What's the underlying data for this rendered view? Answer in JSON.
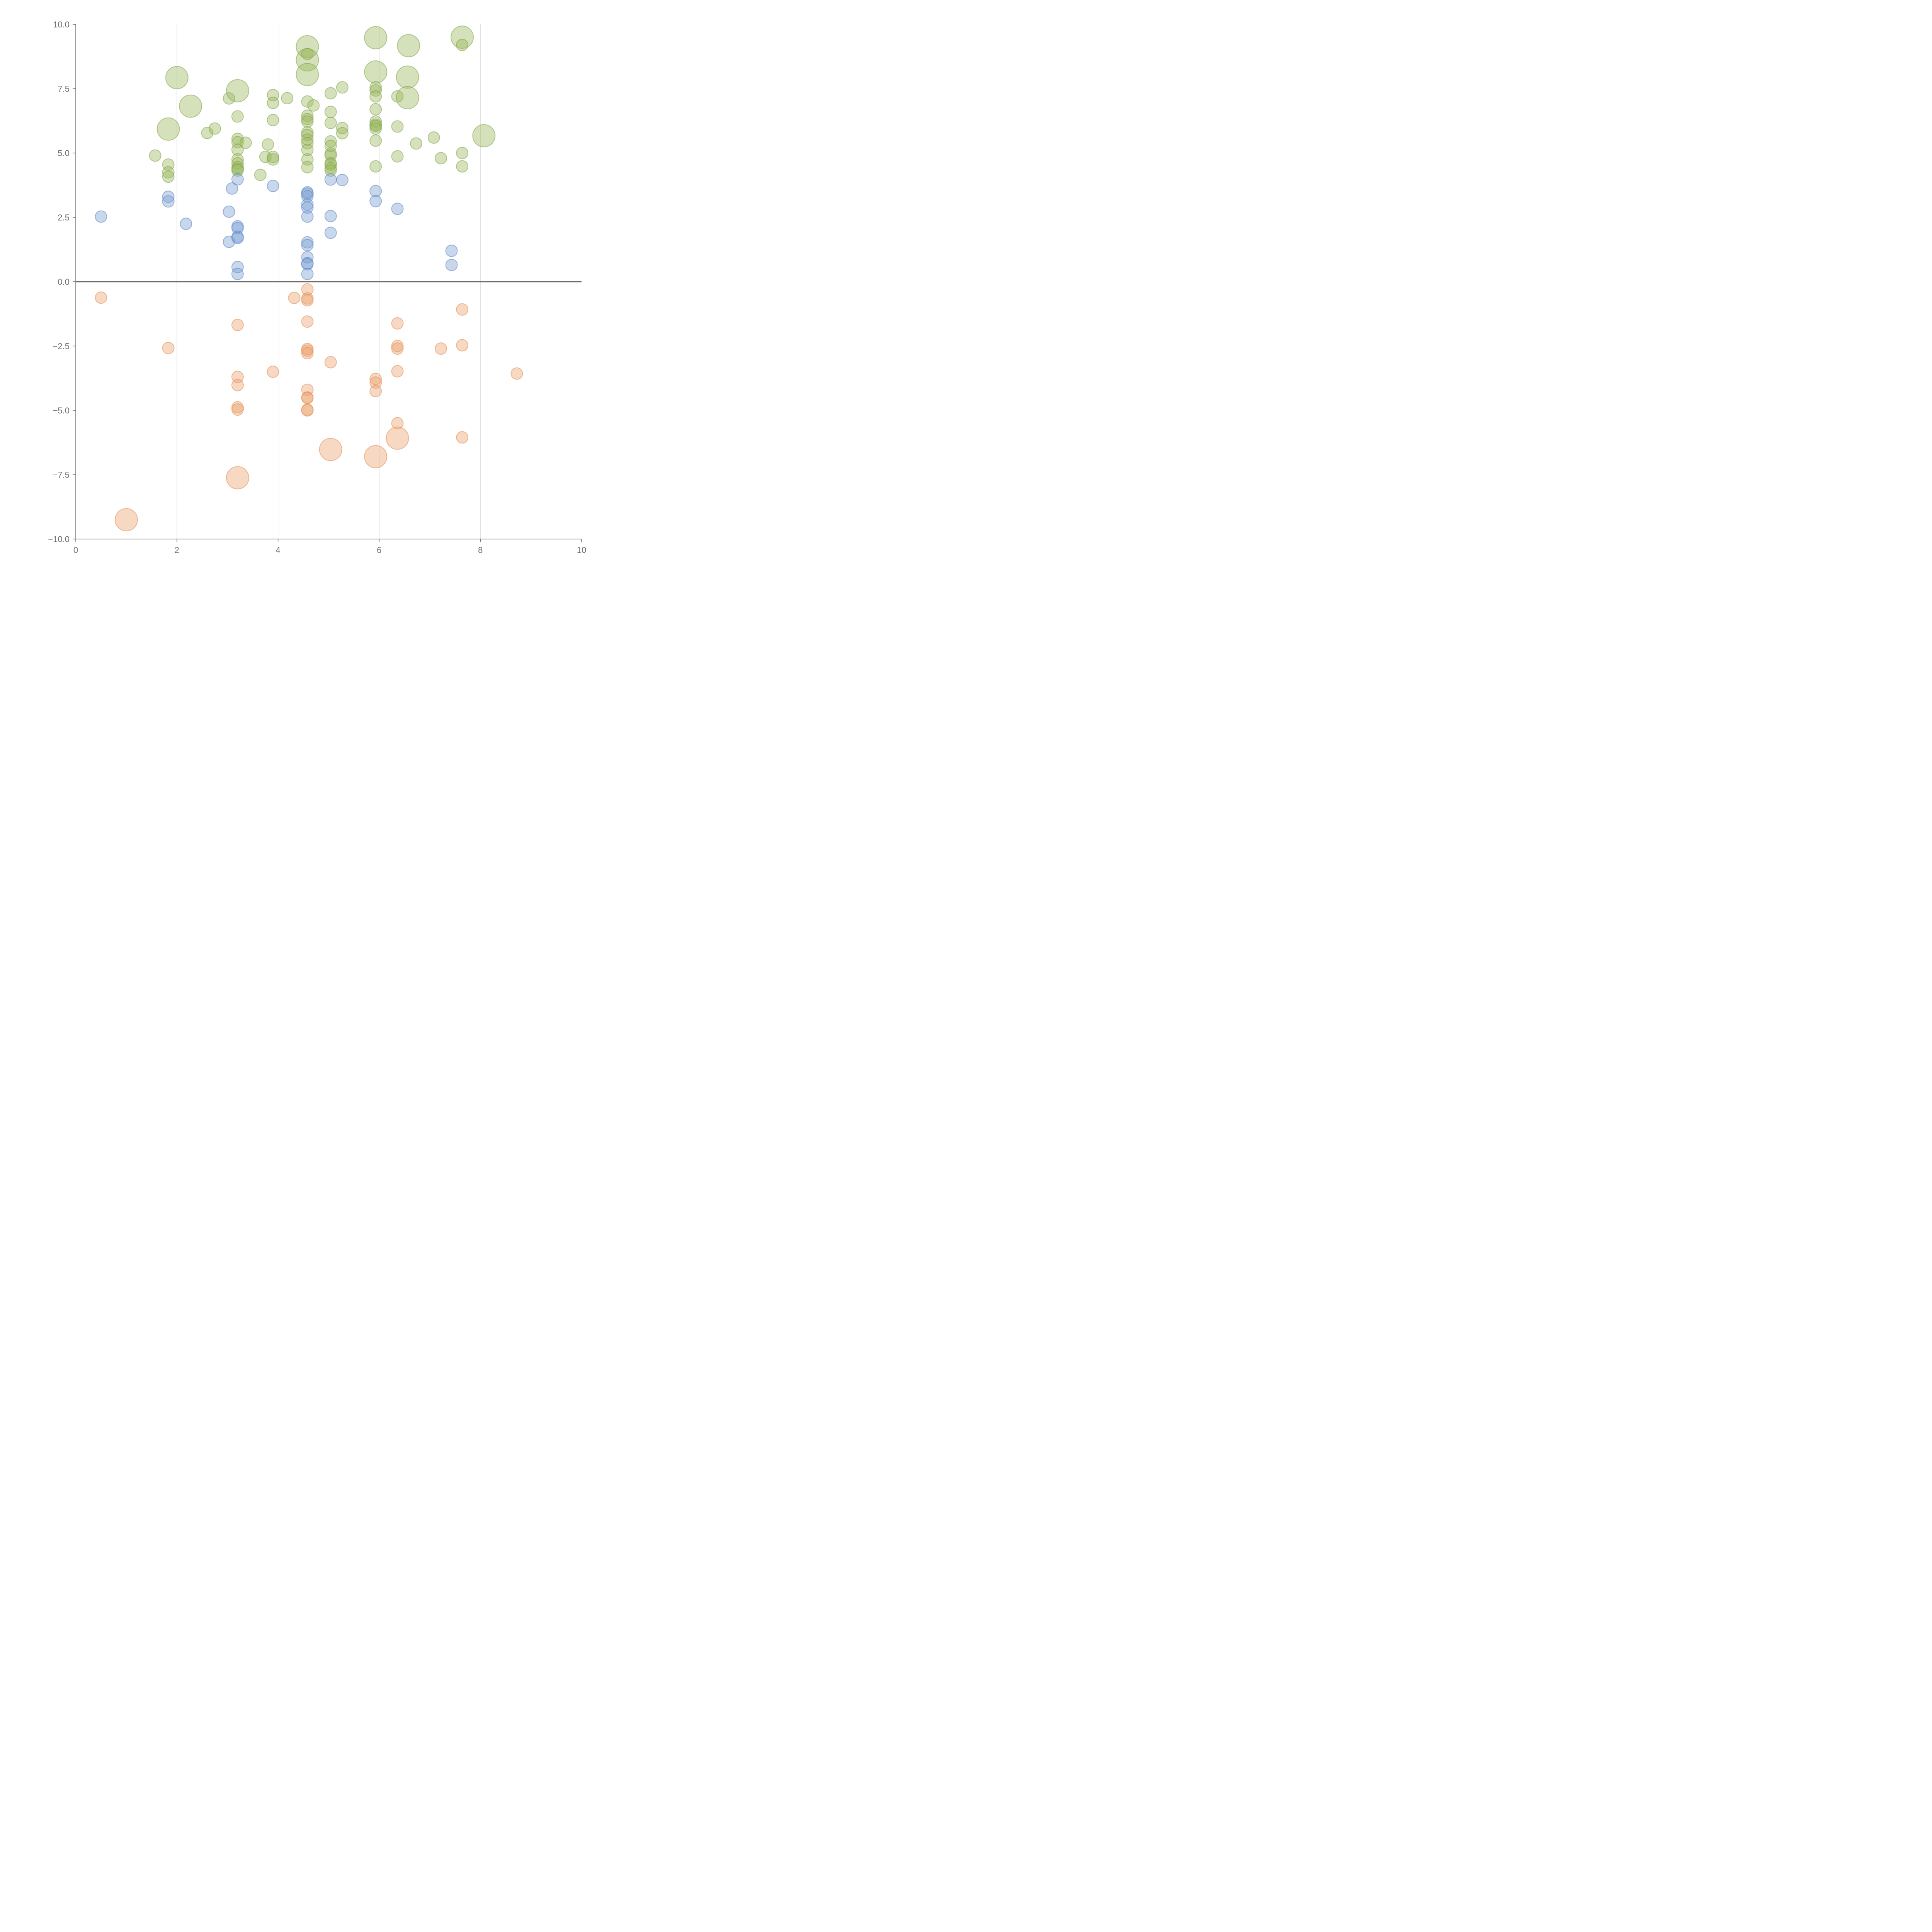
{
  "chart_data": {
    "type": "scatter",
    "title": "",
    "xlabel": "",
    "ylabel": "",
    "xlim": [
      0,
      10
    ],
    "ylim": [
      -10,
      10
    ],
    "x_ticks": [
      0,
      2,
      4,
      6,
      8,
      10
    ],
    "x_tick_labels": [
      "0",
      "2",
      "4",
      "6",
      "8",
      "10"
    ],
    "y_ticks": [
      -10,
      -7.5,
      -5,
      -2.5,
      0,
      2.5,
      5,
      7.5,
      10
    ],
    "y_tick_labels": [
      "−10.0",
      "−7.5",
      "−5.0",
      "−2.5",
      "0.0",
      "2.5",
      "5.0",
      "7.5",
      "10.0"
    ],
    "vertical_grid": true,
    "horizontal_grid": false,
    "zero_line": true,
    "bubble_sizes": "point size encodes magnitude (small / large)",
    "series": [
      {
        "color": "#98b85a",
        "stroke": "#7fa148",
        "points": [
          [
            1.57,
            4.9,
            "s"
          ],
          [
            1.83,
            4.55,
            "s"
          ],
          [
            1.83,
            4.25,
            "s"
          ],
          [
            1.83,
            4.08,
            "s"
          ],
          [
            1.83,
            5.93,
            "l"
          ],
          [
            2.0,
            7.93,
            "l"
          ],
          [
            2.27,
            6.82,
            "l"
          ],
          [
            2.6,
            5.78,
            "s"
          ],
          [
            2.75,
            5.95,
            "s"
          ],
          [
            3.03,
            7.12,
            "s"
          ],
          [
            3.2,
            7.42,
            "l"
          ],
          [
            3.2,
            6.42,
            "s"
          ],
          [
            3.2,
            5.55,
            "s"
          ],
          [
            3.2,
            5.42,
            "s"
          ],
          [
            3.2,
            5.13,
            "s"
          ],
          [
            3.2,
            4.75,
            "s"
          ],
          [
            3.2,
            4.6,
            "s"
          ],
          [
            3.2,
            4.45,
            "s"
          ],
          [
            3.2,
            4.38,
            "s"
          ],
          [
            3.2,
            4.32,
            "s"
          ],
          [
            3.36,
            5.4,
            "s"
          ],
          [
            3.65,
            4.15,
            "s"
          ],
          [
            3.75,
            4.85,
            "s"
          ],
          [
            3.8,
            5.33,
            "s"
          ],
          [
            3.9,
            7.25,
            "s"
          ],
          [
            3.9,
            6.95,
            "s"
          ],
          [
            3.9,
            6.28,
            "s"
          ],
          [
            3.9,
            4.85,
            "s"
          ],
          [
            3.9,
            4.75,
            "s"
          ],
          [
            4.18,
            7.13,
            "s"
          ],
          [
            4.58,
            9.13,
            "l"
          ],
          [
            4.58,
            8.62,
            "l"
          ],
          [
            4.58,
            8.05,
            "l"
          ],
          [
            4.58,
            8.85,
            "s"
          ],
          [
            4.58,
            7.0,
            "s"
          ],
          [
            4.58,
            6.45,
            "s"
          ],
          [
            4.58,
            6.32,
            "s"
          ],
          [
            4.58,
            6.22,
            "s"
          ],
          [
            4.58,
            5.8,
            "s"
          ],
          [
            4.58,
            5.7,
            "s"
          ],
          [
            4.58,
            5.52,
            "s"
          ],
          [
            4.58,
            5.38,
            "s"
          ],
          [
            4.58,
            5.12,
            "s"
          ],
          [
            4.58,
            4.75,
            "s"
          ],
          [
            4.58,
            4.45,
            "s"
          ],
          [
            4.7,
            6.85,
            "s"
          ],
          [
            5.04,
            7.32,
            "s"
          ],
          [
            5.04,
            6.6,
            "s"
          ],
          [
            5.04,
            6.17,
            "s"
          ],
          [
            5.04,
            5.45,
            "s"
          ],
          [
            5.04,
            5.28,
            "s"
          ],
          [
            5.04,
            4.98,
            "s"
          ],
          [
            5.04,
            4.9,
            "s"
          ],
          [
            5.04,
            4.6,
            "s"
          ],
          [
            5.04,
            4.55,
            "s"
          ],
          [
            5.04,
            4.42,
            "s"
          ],
          [
            5.04,
            4.32,
            "s"
          ],
          [
            5.27,
            7.55,
            "s"
          ],
          [
            5.27,
            5.97,
            "s"
          ],
          [
            5.27,
            5.77,
            "s"
          ],
          [
            5.93,
            9.48,
            "l"
          ],
          [
            5.93,
            8.15,
            "l"
          ],
          [
            5.93,
            7.55,
            "s"
          ],
          [
            5.93,
            7.43,
            "s"
          ],
          [
            5.93,
            7.2,
            "s"
          ],
          [
            5.93,
            6.7,
            "s"
          ],
          [
            5.93,
            6.22,
            "s"
          ],
          [
            5.93,
            6.1,
            "s"
          ],
          [
            5.93,
            6.05,
            "s"
          ],
          [
            5.93,
            5.95,
            "s"
          ],
          [
            5.93,
            5.48,
            "s"
          ],
          [
            5.93,
            4.48,
            "s"
          ],
          [
            6.36,
            7.2,
            "s"
          ],
          [
            6.36,
            6.03,
            "s"
          ],
          [
            6.36,
            4.87,
            "s"
          ],
          [
            6.58,
            9.17,
            "l"
          ],
          [
            6.56,
            7.95,
            "l"
          ],
          [
            6.56,
            7.15,
            "l"
          ],
          [
            6.73,
            5.37,
            "s"
          ],
          [
            7.08,
            5.6,
            "s"
          ],
          [
            7.22,
            4.8,
            "s"
          ],
          [
            7.64,
            9.5,
            "l"
          ],
          [
            7.64,
            9.2,
            "s"
          ],
          [
            7.64,
            5.0,
            "s"
          ],
          [
            7.64,
            4.48,
            "s"
          ],
          [
            8.07,
            5.67,
            "l"
          ]
        ]
      },
      {
        "color": "#7b9fd2",
        "stroke": "#5a82c0",
        "points": [
          [
            0.5,
            2.53,
            "s"
          ],
          [
            1.83,
            3.3,
            "s"
          ],
          [
            1.83,
            3.12,
            "s"
          ],
          [
            2.18,
            2.25,
            "s"
          ],
          [
            3.03,
            2.72,
            "s"
          ],
          [
            3.03,
            1.55,
            "s"
          ],
          [
            3.09,
            3.62,
            "s"
          ],
          [
            3.2,
            3.98,
            "s"
          ],
          [
            3.2,
            2.15,
            "s"
          ],
          [
            3.2,
            2.08,
            "s"
          ],
          [
            3.2,
            1.75,
            "s"
          ],
          [
            3.2,
            1.7,
            "s"
          ],
          [
            3.2,
            0.57,
            "s"
          ],
          [
            3.2,
            0.3,
            "s"
          ],
          [
            3.9,
            3.72,
            "s"
          ],
          [
            4.58,
            3.47,
            "s"
          ],
          [
            4.58,
            3.42,
            "s"
          ],
          [
            4.58,
            3.32,
            "s"
          ],
          [
            4.58,
            3.0,
            "s"
          ],
          [
            4.58,
            2.88,
            "s"
          ],
          [
            4.58,
            2.53,
            "s"
          ],
          [
            4.58,
            1.53,
            "s"
          ],
          [
            4.58,
            1.42,
            "s"
          ],
          [
            4.58,
            0.95,
            "s"
          ],
          [
            4.58,
            0.72,
            "s"
          ],
          [
            4.58,
            0.68,
            "s"
          ],
          [
            4.58,
            0.3,
            "s"
          ],
          [
            5.04,
            3.97,
            "s"
          ],
          [
            5.04,
            2.55,
            "s"
          ],
          [
            5.04,
            1.9,
            "s"
          ],
          [
            5.27,
            3.95,
            "s"
          ],
          [
            5.93,
            3.52,
            "s"
          ],
          [
            5.93,
            3.13,
            "s"
          ],
          [
            6.36,
            2.83,
            "s"
          ],
          [
            7.43,
            1.2,
            "s"
          ],
          [
            7.43,
            0.65,
            "s"
          ]
        ]
      },
      {
        "color": "#eba36e",
        "stroke": "#e08a50",
        "points": [
          [
            0.5,
            -0.62,
            "s"
          ],
          [
            1.0,
            -9.25,
            "l"
          ],
          [
            1.83,
            -2.58,
            "s"
          ],
          [
            3.2,
            -1.68,
            "s"
          ],
          [
            3.2,
            -3.7,
            "s"
          ],
          [
            3.2,
            -4.02,
            "s"
          ],
          [
            3.2,
            -4.88,
            "s"
          ],
          [
            3.2,
            -4.97,
            "s"
          ],
          [
            3.2,
            -7.62,
            "l"
          ],
          [
            3.9,
            -3.5,
            "s"
          ],
          [
            4.32,
            -0.63,
            "s"
          ],
          [
            4.58,
            -0.3,
            "s"
          ],
          [
            4.58,
            -0.65,
            "s"
          ],
          [
            4.58,
            -0.72,
            "s"
          ],
          [
            4.58,
            -1.55,
            "s"
          ],
          [
            4.58,
            -2.62,
            "s"
          ],
          [
            4.58,
            -2.68,
            "s"
          ],
          [
            4.58,
            -2.78,
            "s"
          ],
          [
            4.58,
            -4.2,
            "s"
          ],
          [
            4.58,
            -4.5,
            "s"
          ],
          [
            4.58,
            -4.52,
            "s"
          ],
          [
            4.58,
            -4.97,
            "s"
          ],
          [
            4.58,
            -5.0,
            "s"
          ],
          [
            5.04,
            -3.13,
            "s"
          ],
          [
            5.04,
            -6.52,
            "l"
          ],
          [
            5.93,
            -3.78,
            "s"
          ],
          [
            5.93,
            -3.92,
            "s"
          ],
          [
            5.93,
            -4.25,
            "s"
          ],
          [
            5.93,
            -6.8,
            "l"
          ],
          [
            6.36,
            -1.62,
            "s"
          ],
          [
            6.36,
            -2.5,
            "s"
          ],
          [
            6.36,
            -2.6,
            "s"
          ],
          [
            6.36,
            -3.48,
            "s"
          ],
          [
            6.36,
            -5.5,
            "s"
          ],
          [
            6.36,
            -6.08,
            "l"
          ],
          [
            7.22,
            -2.6,
            "s"
          ],
          [
            7.64,
            -1.08,
            "s"
          ],
          [
            7.64,
            -2.47,
            "s"
          ],
          [
            7.64,
            -6.05,
            "s"
          ],
          [
            8.72,
            -3.57,
            "s"
          ]
        ]
      }
    ]
  }
}
